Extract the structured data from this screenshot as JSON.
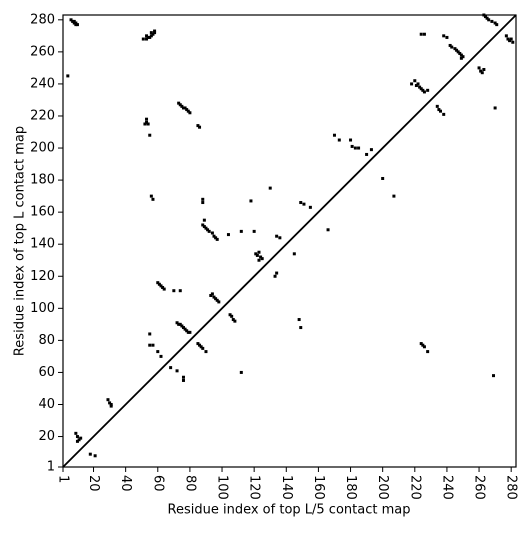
{
  "chart_data": {
    "type": "scatter",
    "xlabel": "Residue index of top L/5 contact map",
    "ylabel": "Residue index of top L contact map",
    "xlim": [
      1,
      283
    ],
    "ylim": [
      1,
      283
    ],
    "xticks": [
      1,
      20,
      40,
      60,
      80,
      100,
      120,
      140,
      160,
      180,
      200,
      220,
      240,
      260,
      280
    ],
    "yticks": [
      1,
      20,
      40,
      60,
      80,
      100,
      120,
      140,
      160,
      180,
      200,
      220,
      240,
      260,
      280
    ],
    "diagonal": true,
    "series": [
      {
        "color": "#000000",
        "x": [
          6,
          7,
          8,
          8,
          9,
          10,
          9,
          4,
          51,
          53,
          54,
          55,
          56,
          57,
          58,
          58,
          56,
          53,
          53,
          53,
          52,
          54,
          55,
          73,
          74,
          75,
          76,
          77,
          78,
          79,
          80,
          85,
          86,
          56,
          57,
          88,
          88,
          88,
          89,
          90,
          91,
          92,
          94,
          95,
          96,
          97,
          89,
          93,
          94,
          95,
          96,
          97,
          98,
          60,
          61,
          62,
          63,
          64,
          70,
          74,
          72,
          73,
          74,
          75,
          76,
          77,
          78,
          79,
          80,
          85,
          86,
          87,
          88,
          90,
          55,
          55,
          57,
          60,
          62,
          68,
          72,
          76,
          76,
          112,
          105,
          106,
          107,
          108,
          9,
          10,
          11,
          12,
          10,
          18,
          21,
          29,
          30,
          31,
          31,
          104,
          112,
          118,
          120,
          121,
          122,
          123,
          124,
          125,
          123,
          130,
          134,
          133,
          134,
          136,
          145,
          148,
          149,
          149,
          151,
          155,
          166,
          170,
          173,
          180,
          181,
          183,
          185,
          190,
          193,
          200,
          207,
          218,
          220,
          221,
          222,
          223,
          224,
          225,
          226,
          228,
          224,
          226,
          224,
          225,
          226,
          228,
          234,
          235,
          236,
          238,
          238,
          240,
          242,
          243,
          245,
          246,
          247,
          248,
          249,
          250,
          249,
          260,
          261,
          262,
          263,
          263,
          264,
          265,
          266,
          268,
          270,
          271,
          270,
          269,
          277,
          278,
          279,
          281,
          280
        ],
        "values": [
          280,
          279,
          279,
          278,
          278,
          277,
          277,
          245,
          268,
          268,
          269,
          269,
          270,
          271,
          272,
          273,
          272,
          270,
          218,
          216,
          215,
          215,
          208,
          228,
          227,
          226,
          225,
          225,
          224,
          223,
          222,
          214,
          213,
          170,
          168,
          168,
          166,
          152,
          151,
          150,
          149,
          148,
          147,
          145,
          144,
          143,
          155,
          108,
          109,
          107,
          106,
          105,
          104,
          116,
          115,
          114,
          113,
          112,
          111,
          111,
          91,
          90,
          90,
          89,
          88,
          87,
          86,
          85,
          85,
          78,
          77,
          76,
          75,
          73,
          84,
          77,
          77,
          73,
          70,
          63,
          61,
          57,
          55,
          60,
          96,
          95,
          93,
          92,
          22,
          20,
          18,
          19,
          17,
          9,
          8,
          43,
          41,
          40,
          39,
          146,
          148,
          167,
          148,
          134,
          133,
          135,
          132,
          131,
          130,
          175,
          122,
          120,
          145,
          144,
          134,
          93,
          88,
          166,
          165,
          163,
          149,
          208,
          205,
          205,
          201,
          200,
          200,
          196,
          199,
          181,
          170,
          240,
          242,
          239,
          240,
          238,
          237,
          236,
          235,
          236,
          271,
          271,
          78,
          77,
          76,
          73,
          226,
          224,
          223,
          221,
          270,
          269,
          264,
          263,
          262,
          261,
          260,
          259,
          258,
          257,
          256,
          250,
          248,
          247,
          249,
          283,
          282,
          281,
          280,
          279,
          278,
          277,
          225,
          58,
          270,
          268,
          267,
          266,
          268
        ]
      }
    ]
  }
}
